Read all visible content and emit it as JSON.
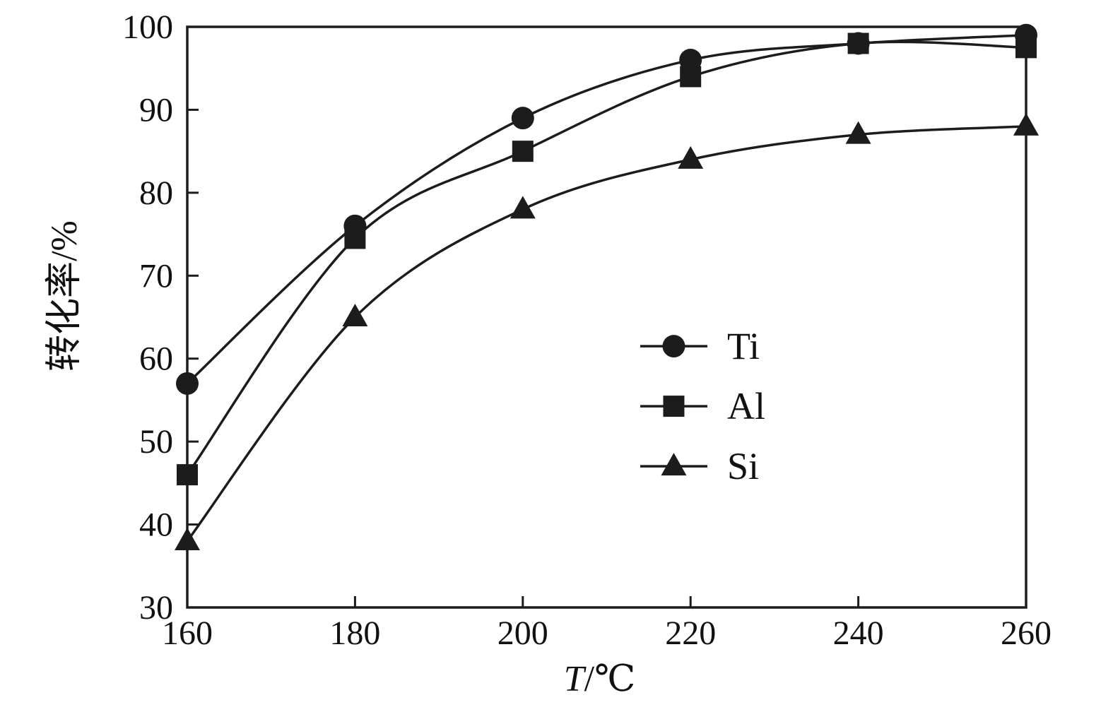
{
  "chart_data": {
    "type": "line",
    "x": [
      160,
      180,
      200,
      220,
      240,
      260
    ],
    "series": [
      {
        "name": "Ti",
        "marker": "circle",
        "values": [
          57,
          76,
          89,
          96,
          98,
          99
        ]
      },
      {
        "name": "Al",
        "marker": "square",
        "values": [
          46,
          74.5,
          85,
          94,
          98,
          97.5
        ]
      },
      {
        "name": "Si",
        "marker": "triangle",
        "values": [
          38,
          65,
          78,
          84,
          87,
          88
        ]
      }
    ],
    "title": "",
    "xlabel": "T/℃",
    "xlabel_variable": "T",
    "xlabel_rest": "/℃",
    "ylabel": "转化率/%",
    "xlim": [
      160,
      260
    ],
    "ylim": [
      30,
      100
    ],
    "x_ticks": [
      160,
      180,
      200,
      220,
      240,
      260
    ],
    "y_ticks": [
      30,
      40,
      50,
      60,
      70,
      80,
      90,
      100
    ],
    "grid": false,
    "legend_position": "center-right",
    "legend_entries": [
      "Ti",
      "Al",
      "Si"
    ],
    "line_color": "#1c1c1c",
    "marker_color": "#1c1c1c",
    "background": "#ffffff"
  }
}
